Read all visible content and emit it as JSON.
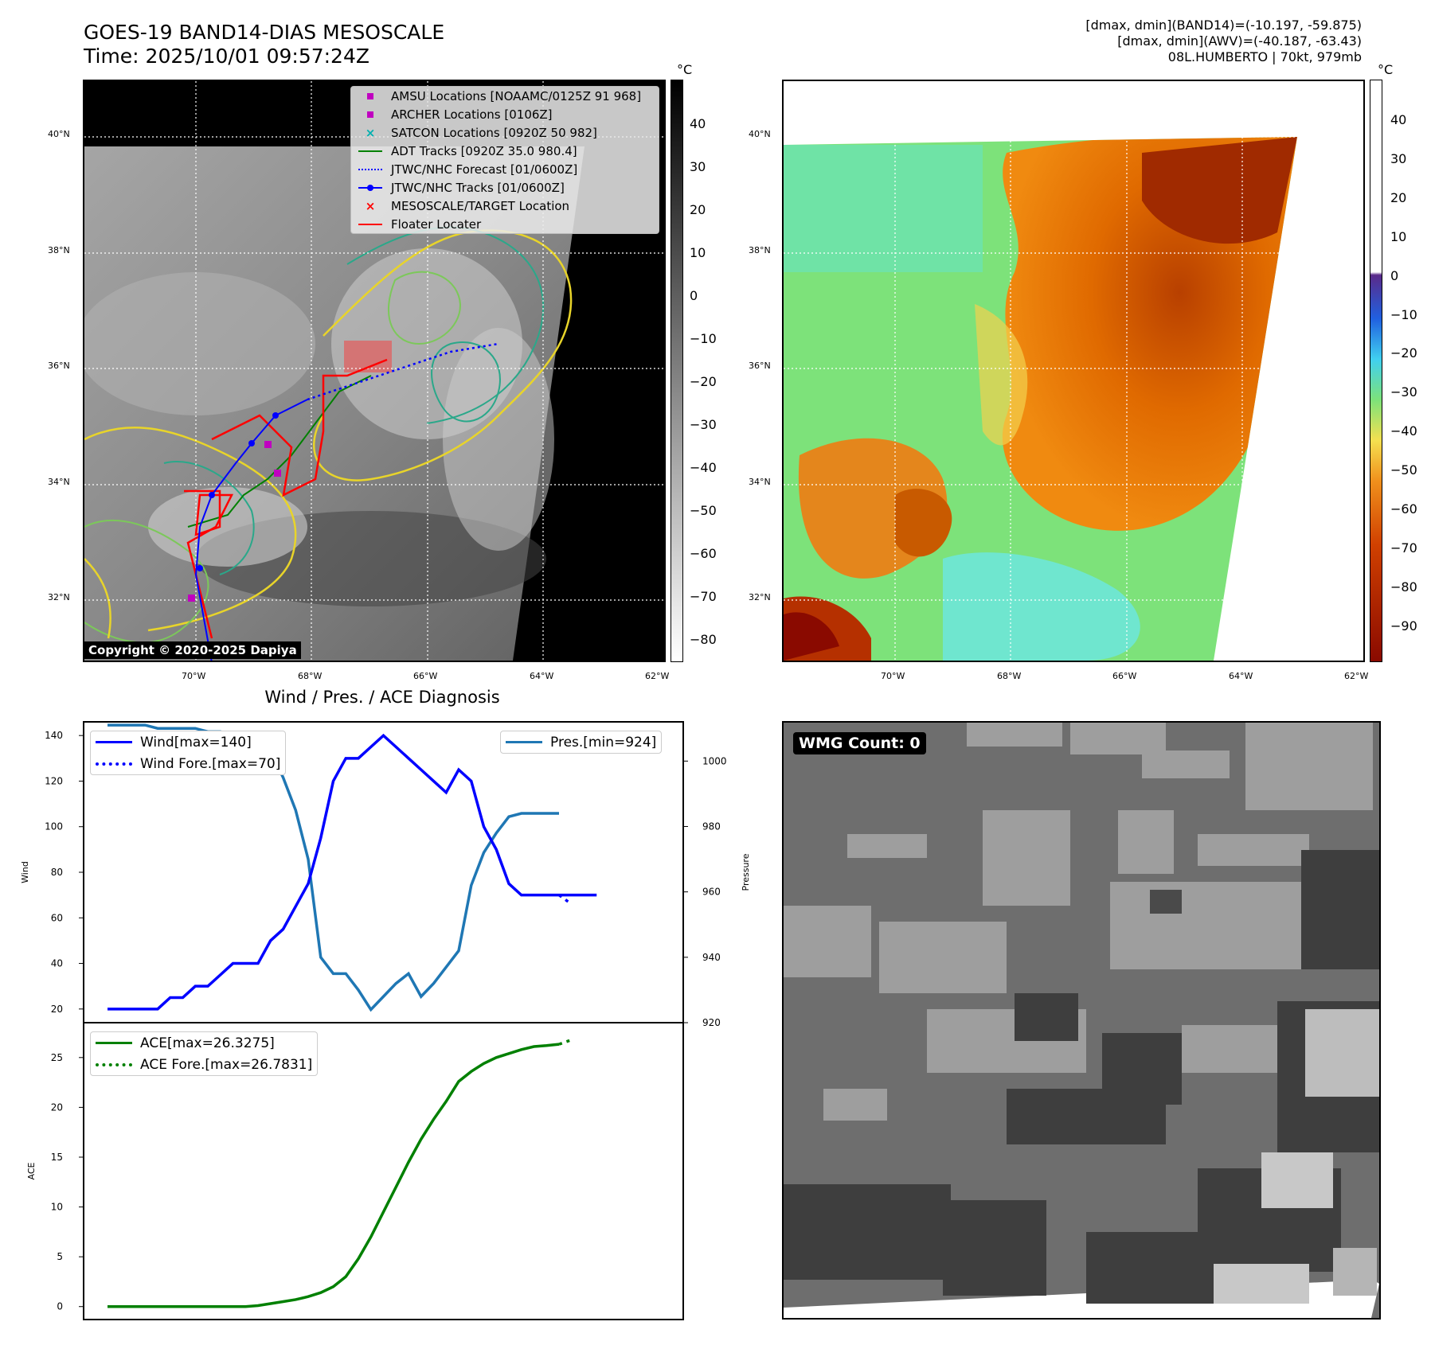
{
  "header": {
    "title_line1": "GOES-19 BAND14-DIAS MESOSCALE",
    "title_line2": "Time: 2025/10/01 09:57:24Z",
    "info_line1": "[dmax, dmin](BAND14)=(-10.197, -59.875)",
    "info_line2": "[dmax, dmin](AWV)=(-40.187, -63.43)",
    "info_line3": "08L.HUMBERTO | 70kt, 979mb"
  },
  "map": {
    "lat_labels": [
      "40°N",
      "38°N",
      "36°N",
      "34°N",
      "32°N"
    ],
    "lon_labels": [
      "70°W",
      "68°W",
      "66°W",
      "64°W",
      "62°W"
    ],
    "copyright": "Copyright © 2020-2025 Dapiya",
    "legend": [
      {
        "label": "AMSU Locations [NOAAMC/0125Z 91 968]",
        "marker": "square",
        "color": "#c000c0"
      },
      {
        "label": "ARCHER Locations [0106Z]",
        "marker": "square",
        "color": "#c000c0"
      },
      {
        "label": "SATCON Locations [0920Z 50 982]",
        "marker": "x",
        "color": "#00b0b0"
      },
      {
        "label": "ADT Tracks [0920Z 35.0 980.4]",
        "marker": "line",
        "color": "#008000"
      },
      {
        "label": "JTWC/NHC Forecast [01/0600Z]",
        "marker": "dotted",
        "color": "#0000ff"
      },
      {
        "label": "JTWC/NHC Tracks [01/0600Z]",
        "marker": "line-dot",
        "color": "#0000ff"
      },
      {
        "label": "MESOSCALE/TARGET Location",
        "marker": "x",
        "color": "#ff0000"
      },
      {
        "label": "Floater Locater",
        "marker": "line",
        "color": "#ff0000"
      }
    ]
  },
  "colorbar_gray": {
    "unit": "°C",
    "ticks": [
      "40",
      "30",
      "20",
      "10",
      "0",
      "−10",
      "−20",
      "−30",
      "−40",
      "−50",
      "−60",
      "−70",
      "−80"
    ]
  },
  "colorbar_color": {
    "unit": "°C",
    "ticks": [
      "40",
      "30",
      "20",
      "10",
      "0",
      "−10",
      "−20",
      "−30",
      "−40",
      "−50",
      "−60",
      "−70",
      "−80",
      "−90"
    ]
  },
  "wmg": {
    "label": "WMG Count: 0"
  },
  "chart_data": [
    {
      "type": "line",
      "title": "Wind / Pres. / ACE Diagnosis",
      "ylabel": "Wind",
      "ylabel_right": "Pressure",
      "ylim": [
        14,
        146
      ],
      "ylim_right": [
        920,
        1012
      ],
      "yticks": [
        20,
        40,
        60,
        80,
        100,
        120,
        140
      ],
      "yticks_right": [
        920,
        940,
        960,
        980,
        1000
      ],
      "legend": {
        "wind": "Wind[max=140]",
        "wind_fore": "Wind Fore.[max=70]",
        "pres": "Pres.[min=924]"
      },
      "colors": {
        "wind": "#0000ff",
        "pres": "#1f77b4"
      },
      "series": [
        {
          "name": "Wind[max=140]",
          "x": [
            0,
            1,
            2,
            3,
            4,
            5,
            6,
            7,
            8,
            9,
            10,
            11,
            12,
            13,
            14,
            15,
            16,
            17,
            18,
            19,
            20,
            21,
            22,
            23,
            24,
            25,
            26,
            27,
            28,
            29,
            30,
            31,
            32,
            33,
            34,
            35,
            36,
            37,
            38,
            39
          ],
          "values": [
            20,
            20,
            20,
            20,
            20,
            25,
            25,
            30,
            30,
            35,
            40,
            40,
            40,
            50,
            55,
            65,
            75,
            95,
            120,
            130,
            130,
            135,
            140,
            135,
            130,
            125,
            120,
            115,
            125,
            120,
            100,
            90,
            75,
            70,
            70,
            70,
            70,
            70,
            70,
            70
          ]
        },
        {
          "name": "Wind Fore.[max=70]",
          "x": [
            36,
            37
          ],
          "values": [
            70,
            66
          ]
        },
        {
          "name": "Pres.[min=924]",
          "x": [
            0,
            1,
            2,
            3,
            4,
            5,
            6,
            7,
            8,
            9,
            10,
            11,
            12,
            13,
            14,
            15,
            16,
            17,
            18,
            19,
            20,
            21,
            22,
            23,
            24,
            25,
            26,
            27,
            28,
            29,
            30,
            31,
            32,
            33,
            34,
            35,
            36
          ],
          "values": [
            1011,
            1011,
            1011,
            1011,
            1010,
            1010,
            1010,
            1010,
            1009,
            1009,
            1008,
            1008,
            1005,
            1003,
            995,
            985,
            970,
            940,
            935,
            935,
            930,
            924,
            928,
            932,
            935,
            928,
            932,
            937,
            942,
            962,
            972,
            978,
            983,
            984,
            984,
            984,
            984
          ]
        }
      ]
    },
    {
      "type": "line",
      "ylabel": "ACE",
      "ylim": [
        -1.3,
        28.5
      ],
      "yticks": [
        0,
        5,
        10,
        15,
        20,
        25
      ],
      "legend": {
        "ace": "ACE[max=26.3275]",
        "ace_fore": "ACE Fore.[max=26.7831]"
      },
      "colors": {
        "ace": "#008000"
      },
      "series": [
        {
          "name": "ACE[max=26.3275]",
          "x": [
            0,
            1,
            2,
            3,
            4,
            5,
            6,
            7,
            8,
            9,
            10,
            11,
            12,
            13,
            14,
            15,
            16,
            17,
            18,
            19,
            20,
            21,
            22,
            23,
            24,
            25,
            26,
            27,
            28,
            29,
            30,
            31,
            32,
            33,
            34,
            35,
            36
          ],
          "values": [
            0,
            0,
            0,
            0,
            0,
            0,
            0,
            0,
            0,
            0,
            0,
            0,
            0.1,
            0.3,
            0.5,
            0.7,
            1.0,
            1.4,
            2.0,
            3.0,
            4.8,
            7.0,
            9.5,
            12.0,
            14.5,
            16.8,
            18.8,
            20.6,
            22.6,
            23.6,
            24.4,
            25.0,
            25.4,
            25.8,
            26.1,
            26.2,
            26.33
          ]
        },
        {
          "name": "ACE Fore.[max=26.7831]",
          "x": [
            36,
            37
          ],
          "values": [
            26.33,
            26.78
          ]
        }
      ]
    }
  ]
}
